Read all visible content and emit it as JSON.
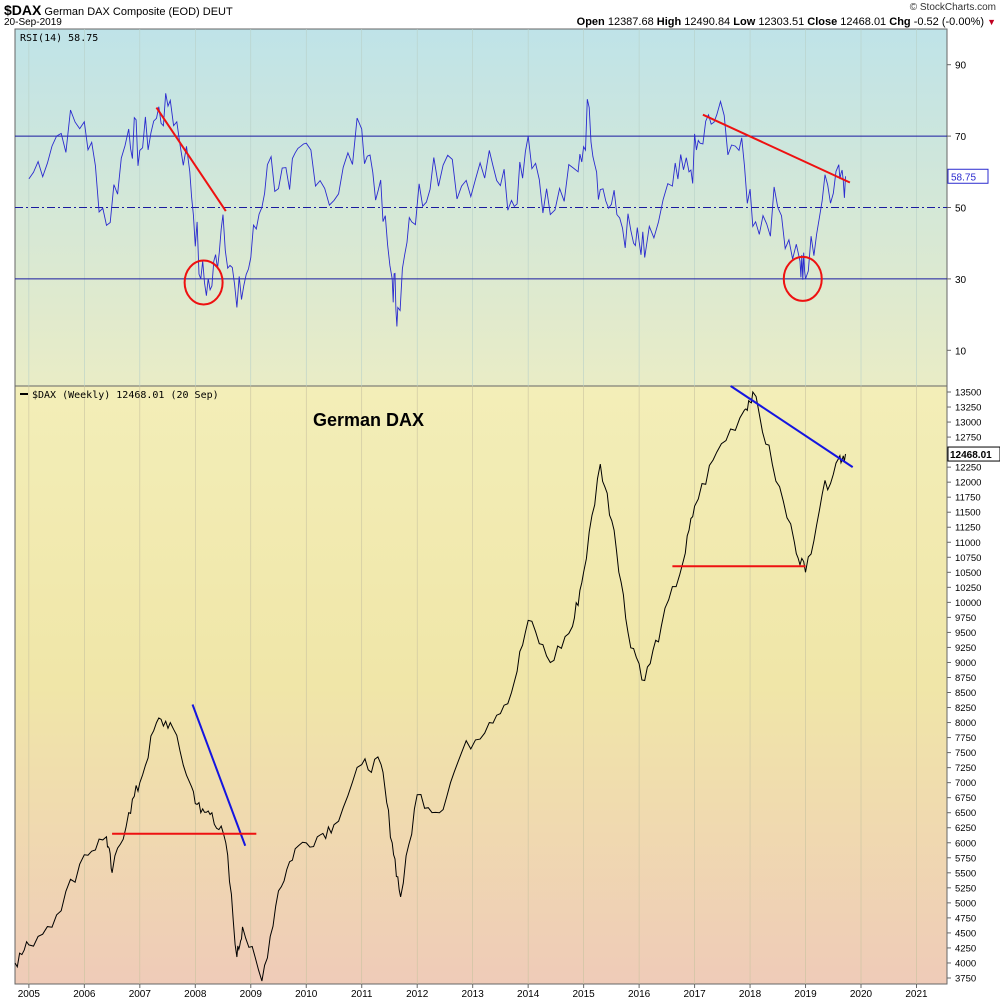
{
  "header": {
    "symbol": "$DAX",
    "name": "German DAX Composite (EOD)",
    "exchange": "DEUT",
    "date": "20-Sep-2019",
    "credit": "© StockCharts.com",
    "open_label": "Open",
    "open": "12387.68",
    "high_label": "High",
    "high": "12490.84",
    "low_label": "Low",
    "low": "12303.51",
    "close_label": "Close",
    "close": "12468.01",
    "chg_label": "Chg",
    "chg": "-0.52 (-0.00%)"
  },
  "chart_data": [
    {
      "type": "line",
      "legend": "RSI(14) 58.75",
      "last_value_label": "58.75",
      "ylim": [
        0,
        100
      ],
      "yticks": [
        10,
        30,
        50,
        70,
        90
      ],
      "reference_lines": [
        30,
        50,
        70
      ],
      "x": [
        2005.0,
        2005.5,
        2006.0,
        2006.4,
        2006.8,
        2007.0,
        2007.3,
        2007.55,
        2007.9,
        2008.1,
        2008.3,
        2008.5,
        2008.75,
        2009.0,
        2009.3,
        2009.7,
        2010.0,
        2010.5,
        2011.0,
        2011.3,
        2011.55,
        2011.65,
        2011.9,
        2012.3,
        2012.8,
        2013.3,
        2013.7,
        2014.0,
        2014.4,
        2014.9,
        2015.1,
        2015.3,
        2015.6,
        2015.9,
        2016.1,
        2016.6,
        2016.9,
        2017.1,
        2017.4,
        2017.8,
        2018.1,
        2018.5,
        2018.9,
        2019.0,
        2019.3,
        2019.6,
        2019.72
      ],
      "values": [
        58,
        70,
        74,
        45,
        72,
        66,
        75,
        80,
        60,
        30,
        28,
        48,
        22,
        36,
        62,
        55,
        68,
        52,
        72,
        55,
        30,
        22,
        46,
        64,
        56,
        66,
        52,
        70,
        48,
        60,
        78,
        55,
        48,
        40,
        36,
        56,
        60,
        68,
        76,
        66,
        46,
        50,
        35,
        30,
        52,
        62,
        58.75
      ],
      "annotations": {
        "trendlines": [
          {
            "x1": 2007.3,
            "y1": 78,
            "x2": 2008.55,
            "y2": 49
          },
          {
            "x1": 2017.15,
            "y1": 76,
            "x2": 2019.8,
            "y2": 57
          }
        ],
        "circles": [
          {
            "x": 2008.15,
            "y": 29
          },
          {
            "x": 2018.95,
            "y": 30
          }
        ]
      }
    },
    {
      "type": "line",
      "title": "German DAX",
      "legend": "$DAX (Weekly) 12468.01 (20 Sep)",
      "last_value_label": "12468.01",
      "ylim": [
        3650,
        13600
      ],
      "yticks": [
        3750,
        4000,
        4250,
        4500,
        4750,
        5000,
        5250,
        5500,
        5750,
        6000,
        6250,
        6500,
        6750,
        7000,
        7250,
        7500,
        7750,
        8000,
        8250,
        8500,
        8750,
        9000,
        9250,
        9500,
        9750,
        10000,
        10250,
        10500,
        10750,
        11000,
        11250,
        11500,
        11750,
        12000,
        12250,
        12500,
        12750,
        13000,
        13250,
        13500
      ],
      "xticks": [
        "2005",
        "2006",
        "2007",
        "2008",
        "2009",
        "2010",
        "2011",
        "2012",
        "2013",
        "2014",
        "2015",
        "2016",
        "2017",
        "2018",
        "2019",
        "2020",
        "2021"
      ],
      "x": [
        2004.75,
        2005.0,
        2005.5,
        2006.0,
        2006.4,
        2006.5,
        2006.8,
        2007.0,
        2007.3,
        2007.55,
        2007.9,
        2008.1,
        2008.3,
        2008.55,
        2008.75,
        2008.85,
        2009.2,
        2009.5,
        2009.8,
        2010.2,
        2010.5,
        2011.0,
        2011.35,
        2011.55,
        2011.7,
        2012.0,
        2012.4,
        2012.8,
        2013.3,
        2013.7,
        2014.0,
        2014.4,
        2014.8,
        2015.0,
        2015.3,
        2015.55,
        2015.8,
        2016.1,
        2016.4,
        2016.8,
        2017.0,
        2017.4,
        2017.9,
        2018.05,
        2018.4,
        2018.8,
        2019.0,
        2019.3,
        2019.6,
        2019.72
      ],
      "values": [
        4000,
        4300,
        4800,
        5800,
        6100,
        5500,
        6500,
        7000,
        8000,
        8000,
        7000,
        6500,
        6500,
        6000,
        4100,
        4600,
        3700,
        5200,
        5900,
        6100,
        6300,
        7300,
        7300,
        6000,
        5100,
        6800,
        6500,
        7500,
        8000,
        8500,
        9700,
        9000,
        9600,
        10500,
        12300,
        11200,
        9500,
        8700,
        9600,
        10700,
        11600,
        12500,
        13200,
        13500,
        12300,
        11000,
        10500,
        11800,
        12400,
        12468.01
      ],
      "annotations": {
        "trendlines": [
          {
            "x1": 2007.95,
            "y1": 8300,
            "x2": 2008.9,
            "y2": 5950
          },
          {
            "x1": 2017.65,
            "y1": 13600,
            "x2": 2019.85,
            "y2": 12250
          }
        ],
        "hlines": [
          {
            "x1": 2006.5,
            "y1": 6150,
            "x2": 2009.1,
            "y2": 6150
          },
          {
            "x1": 2016.6,
            "y1": 10600,
            "x2": 2019.0,
            "y2": 10600
          }
        ]
      }
    }
  ]
}
